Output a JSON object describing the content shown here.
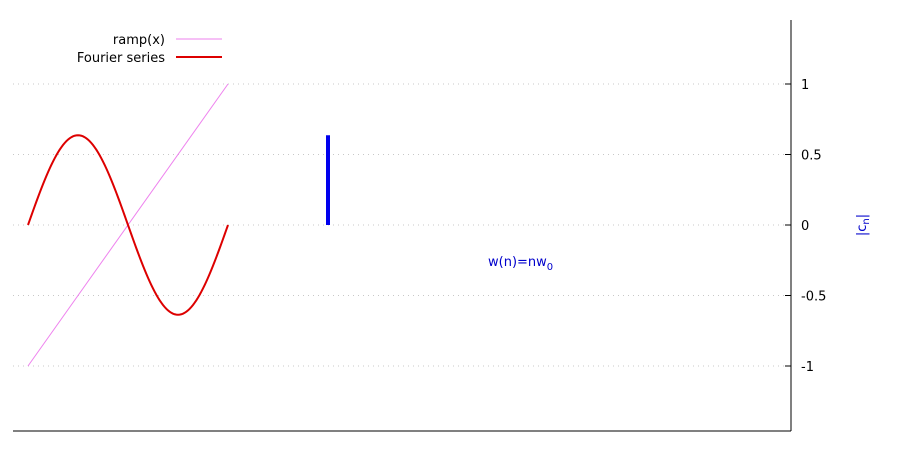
{
  "chart_data": {
    "type": "line",
    "xlabel": "",
    "ylabel": "|c_n|",
    "ylabel_parts": {
      "main": "|c",
      "sub": "n",
      "tail": "|"
    },
    "ylim": [
      -1.44,
      1.44
    ],
    "yticks": [
      {
        "value": 1,
        "label": "1"
      },
      {
        "value": 0.5,
        "label": "0.5"
      },
      {
        "value": 0,
        "label": "0"
      },
      {
        "value": -0.5,
        "label": "-0.5"
      },
      {
        "value": -1,
        "label": "-1"
      }
    ],
    "grid": true,
    "legend_position": "top-left",
    "annotation": {
      "main": "w(n)=nw",
      "sub": "0"
    },
    "series": [
      {
        "name": "ramp(x)",
        "color": "#ee82ee",
        "x": [
          0,
          1
        ],
        "y": [
          -1,
          1
        ]
      },
      {
        "name": "Fourier series",
        "color": "#dd0000",
        "function": "(2/pi)*sin(2*pi*x)",
        "x_range": [
          0,
          1
        ],
        "amplitude": 0.6366
      },
      {
        "name": "",
        "color": "#0000ee",
        "stem": {
          "x": 1.5,
          "y": 0.6366
        }
      }
    ]
  }
}
